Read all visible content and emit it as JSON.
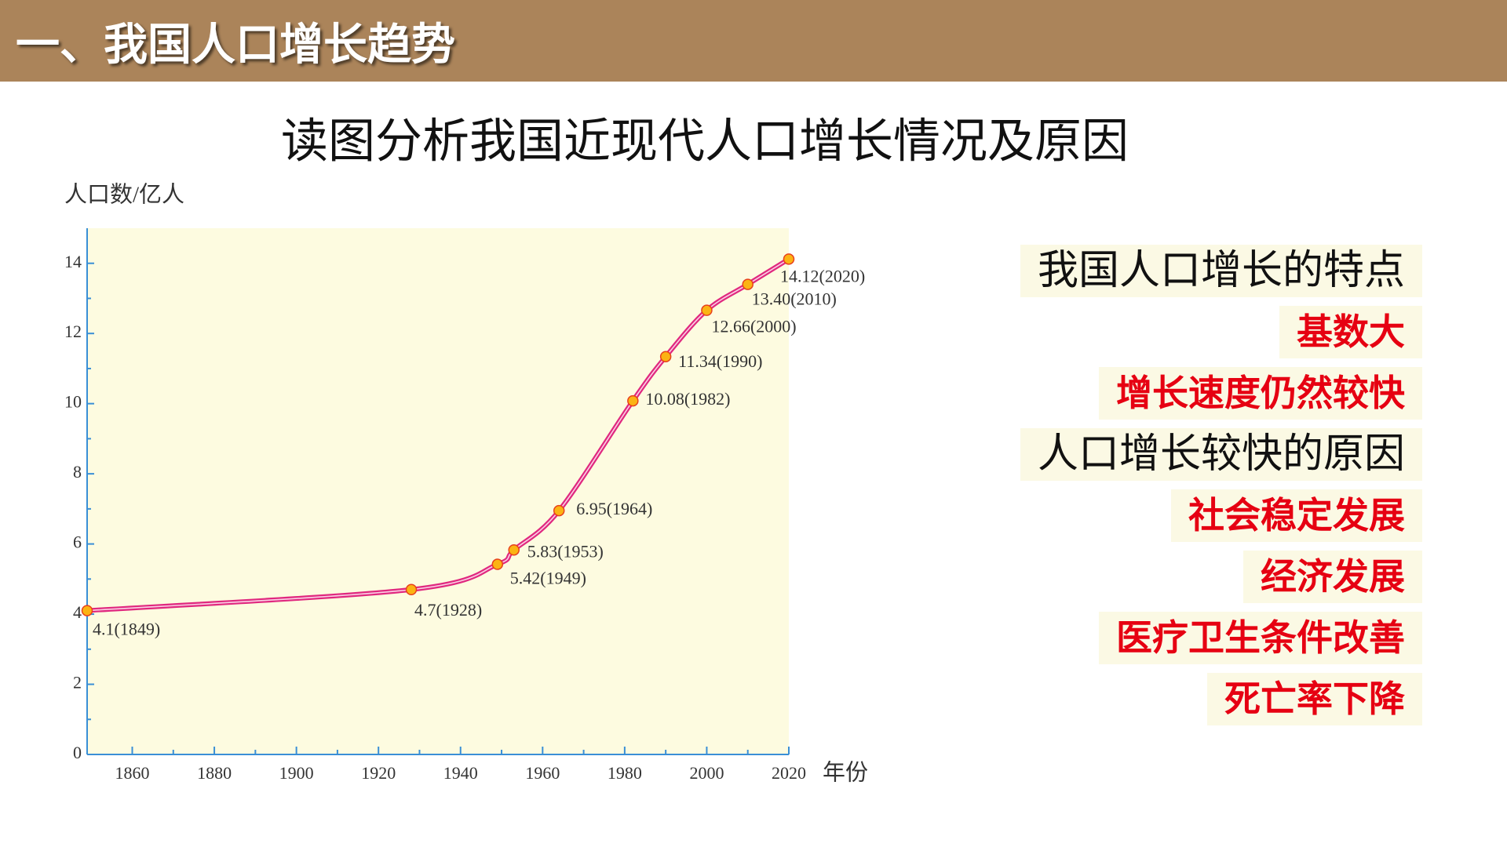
{
  "header": {
    "title": "一、我国人口增长趋势"
  },
  "chart_data": {
    "type": "line",
    "title": "读图分析我国近现代人口增长情况及原因",
    "y_label": "人口数/亿人",
    "x_label": "年份",
    "x": [
      1849,
      1928,
      1949,
      1953,
      1964,
      1982,
      1990,
      2000,
      2010,
      2020
    ],
    "values": [
      4.1,
      4.7,
      5.42,
      5.83,
      6.95,
      10.08,
      11.34,
      12.66,
      13.4,
      14.12
    ],
    "value_labels": [
      "4.1(1849)",
      "4.7(1928)",
      "5.42(1949)",
      "5.83(1953)",
      "6.95(1964)",
      "10.08(1982)",
      "11.34(1990)",
      "12.66(2000)",
      "13.40(2010)",
      "14.12(2020)"
    ],
    "color": "#e0287f",
    "xlim": [
      1849,
      2020
    ],
    "xticks": [
      1860,
      1880,
      1900,
      1920,
      1940,
      1960,
      1980,
      2000,
      2020
    ],
    "xminorticks": [
      1870,
      1890,
      1910,
      1930,
      1950,
      1970,
      1990,
      2010
    ],
    "ylim": [
      0,
      15
    ],
    "yticks": [
      0,
      2,
      4,
      6,
      8,
      10,
      12,
      14
    ],
    "yminorticks": [
      1,
      3,
      5,
      7,
      9,
      11,
      13
    ]
  },
  "panel": {
    "sections": [
      {
        "heading": "我国人口增长的特点",
        "items": [
          "基数大",
          "增长速度仍然较快"
        ]
      },
      {
        "heading": "人口增长较快的原因",
        "items": [
          "社会稳定发展",
          "经济发展",
          "医疗卫生条件改善",
          "死亡率下降"
        ]
      }
    ]
  }
}
